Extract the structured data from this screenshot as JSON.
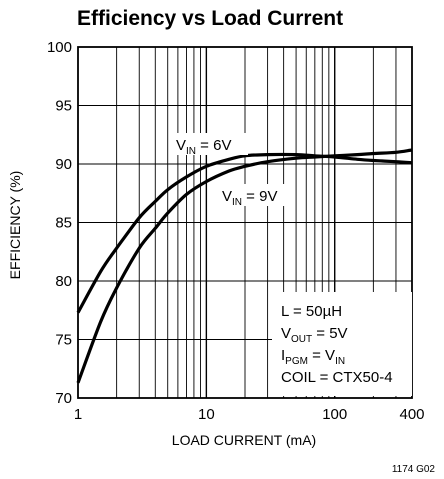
{
  "chart_data": {
    "type": "line",
    "title": "Efficiency vs Load Current",
    "xlabel": "LOAD CURRENT (mA)",
    "ylabel": "EFFICIENCY (%)",
    "x_scale": "log",
    "xlim": [
      1,
      400
    ],
    "ylim": [
      70,
      100
    ],
    "x_tick_labels": [
      "1",
      "10",
      "100",
      "400"
    ],
    "y_tick_labels": [
      "70",
      "75",
      "80",
      "85",
      "90",
      "95",
      "100"
    ],
    "grid": true,
    "series": [
      {
        "name": "V_IN = 6V",
        "x": [
          1,
          1.5,
          2,
          3,
          4,
          5,
          7,
          10,
          15,
          20,
          30,
          50,
          70,
          100,
          150,
          200,
          300,
          400
        ],
        "y": [
          77.3,
          80.8,
          82.8,
          85.4,
          86.8,
          87.8,
          88.9,
          89.8,
          90.4,
          90.7,
          90.8,
          90.8,
          90.7,
          90.6,
          90.4,
          90.3,
          90.2,
          90.1
        ]
      },
      {
        "name": "V_IN = 9V",
        "x": [
          1,
          1.5,
          2,
          3,
          4,
          5,
          7,
          10,
          15,
          20,
          30,
          50,
          70,
          100,
          150,
          200,
          300,
          400
        ],
        "y": [
          71.3,
          76.5,
          79.4,
          82.8,
          84.5,
          85.8,
          87.4,
          88.5,
          89.4,
          89.8,
          90.2,
          90.5,
          90.6,
          90.7,
          90.8,
          90.9,
          91.0,
          91.2
        ]
      }
    ],
    "annotations": {
      "vin6": {
        "v": "V",
        "sub": "IN",
        "rest": " = 6V"
      },
      "vin9": {
        "v": "V",
        "sub": "IN",
        "rest": " = 9V"
      },
      "conditions": [
        {
          "main": "L = 50µH",
          "sub": "",
          "rest": "",
          "sub2": ""
        },
        {
          "main": "V",
          "sub": "OUT",
          "rest": " = 5V",
          "sub2": ""
        },
        {
          "main": "I",
          "sub": "PGM",
          "rest": " = V",
          "sub2": "IN"
        },
        {
          "main": "COIL = CTX50-4",
          "sub": "",
          "rest": "",
          "sub2": ""
        }
      ]
    },
    "figure_code": "1174 G02"
  }
}
